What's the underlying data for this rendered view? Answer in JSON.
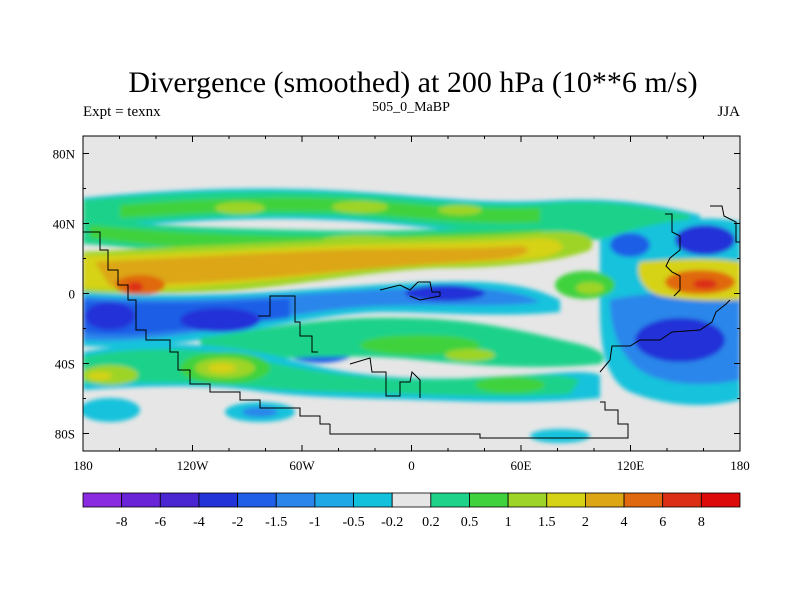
{
  "chart_data": {
    "type": "heatmap",
    "title": "Divergence (smoothed) at 200 hPa (10**6 m/s)",
    "subtitle_left": "Expt = texnx",
    "subtitle_center": "505_0_MaBP",
    "subtitle_right": "JJA",
    "x_range": [
      -180,
      180
    ],
    "y_range": [
      -90,
      90
    ],
    "x_ticks": [
      {
        "value": -180,
        "label": "180"
      },
      {
        "value": -120,
        "label": "120W"
      },
      {
        "value": -60,
        "label": "60W"
      },
      {
        "value": 0,
        "label": "0"
      },
      {
        "value": 60,
        "label": "60E"
      },
      {
        "value": 120,
        "label": "120E"
      },
      {
        "value": 180,
        "label": "180"
      }
    ],
    "y_ticks": [
      {
        "value": 80,
        "label": "80N"
      },
      {
        "value": 40,
        "label": "40N"
      },
      {
        "value": 0,
        "label": "0"
      },
      {
        "value": -40,
        "label": "40S"
      },
      {
        "value": -80,
        "label": "80S"
      }
    ],
    "colorbar": {
      "labels": [
        "-8",
        "-6",
        "-4",
        "-2",
        "-1.5",
        "-1",
        "-0.5",
        "-0.2",
        "0.2",
        "0.5",
        "1",
        "1.5",
        "2",
        "4",
        "6",
        "8"
      ],
      "colors": [
        "#8a2be2",
        "#6a24d8",
        "#4a26d2",
        "#2233d8",
        "#1f5ee6",
        "#2a86ea",
        "#1ea8e6",
        "#12c2dc",
        "#e6e6e6",
        "#1fd28a",
        "#40d23c",
        "#9ed428",
        "#d6d215",
        "#dca614",
        "#e0690f",
        "#dc2e14",
        "#dc0a0a"
      ]
    },
    "features": [
      {
        "band": "equatorial positive divergence",
        "lon": [
          -180,
          10
        ],
        "lat": [
          -8,
          12
        ],
        "value": 4
      },
      {
        "band": "equatorial positive divergence (W Pacific)",
        "lon": [
          130,
          180
        ],
        "lat": [
          -8,
          12
        ],
        "value": 6
      },
      {
        "band": "southern tropical convergence",
        "lon": [
          -180,
          60
        ],
        "lat": [
          -40,
          -10
        ],
        "value": -2
      },
      {
        "band": "maritime continent convergence",
        "lon": [
          100,
          180
        ],
        "lat": [
          -40,
          30
        ],
        "value": -2
      },
      {
        "band": "northern mid-latitude divergence",
        "lon": [
          -180,
          90
        ],
        "lat": [
          25,
          50
        ],
        "value": 1
      },
      {
        "band": "southern mid-latitude divergence",
        "lon": [
          -180,
          110
        ],
        "lat": [
          -60,
          -35
        ],
        "value": 1
      }
    ]
  }
}
